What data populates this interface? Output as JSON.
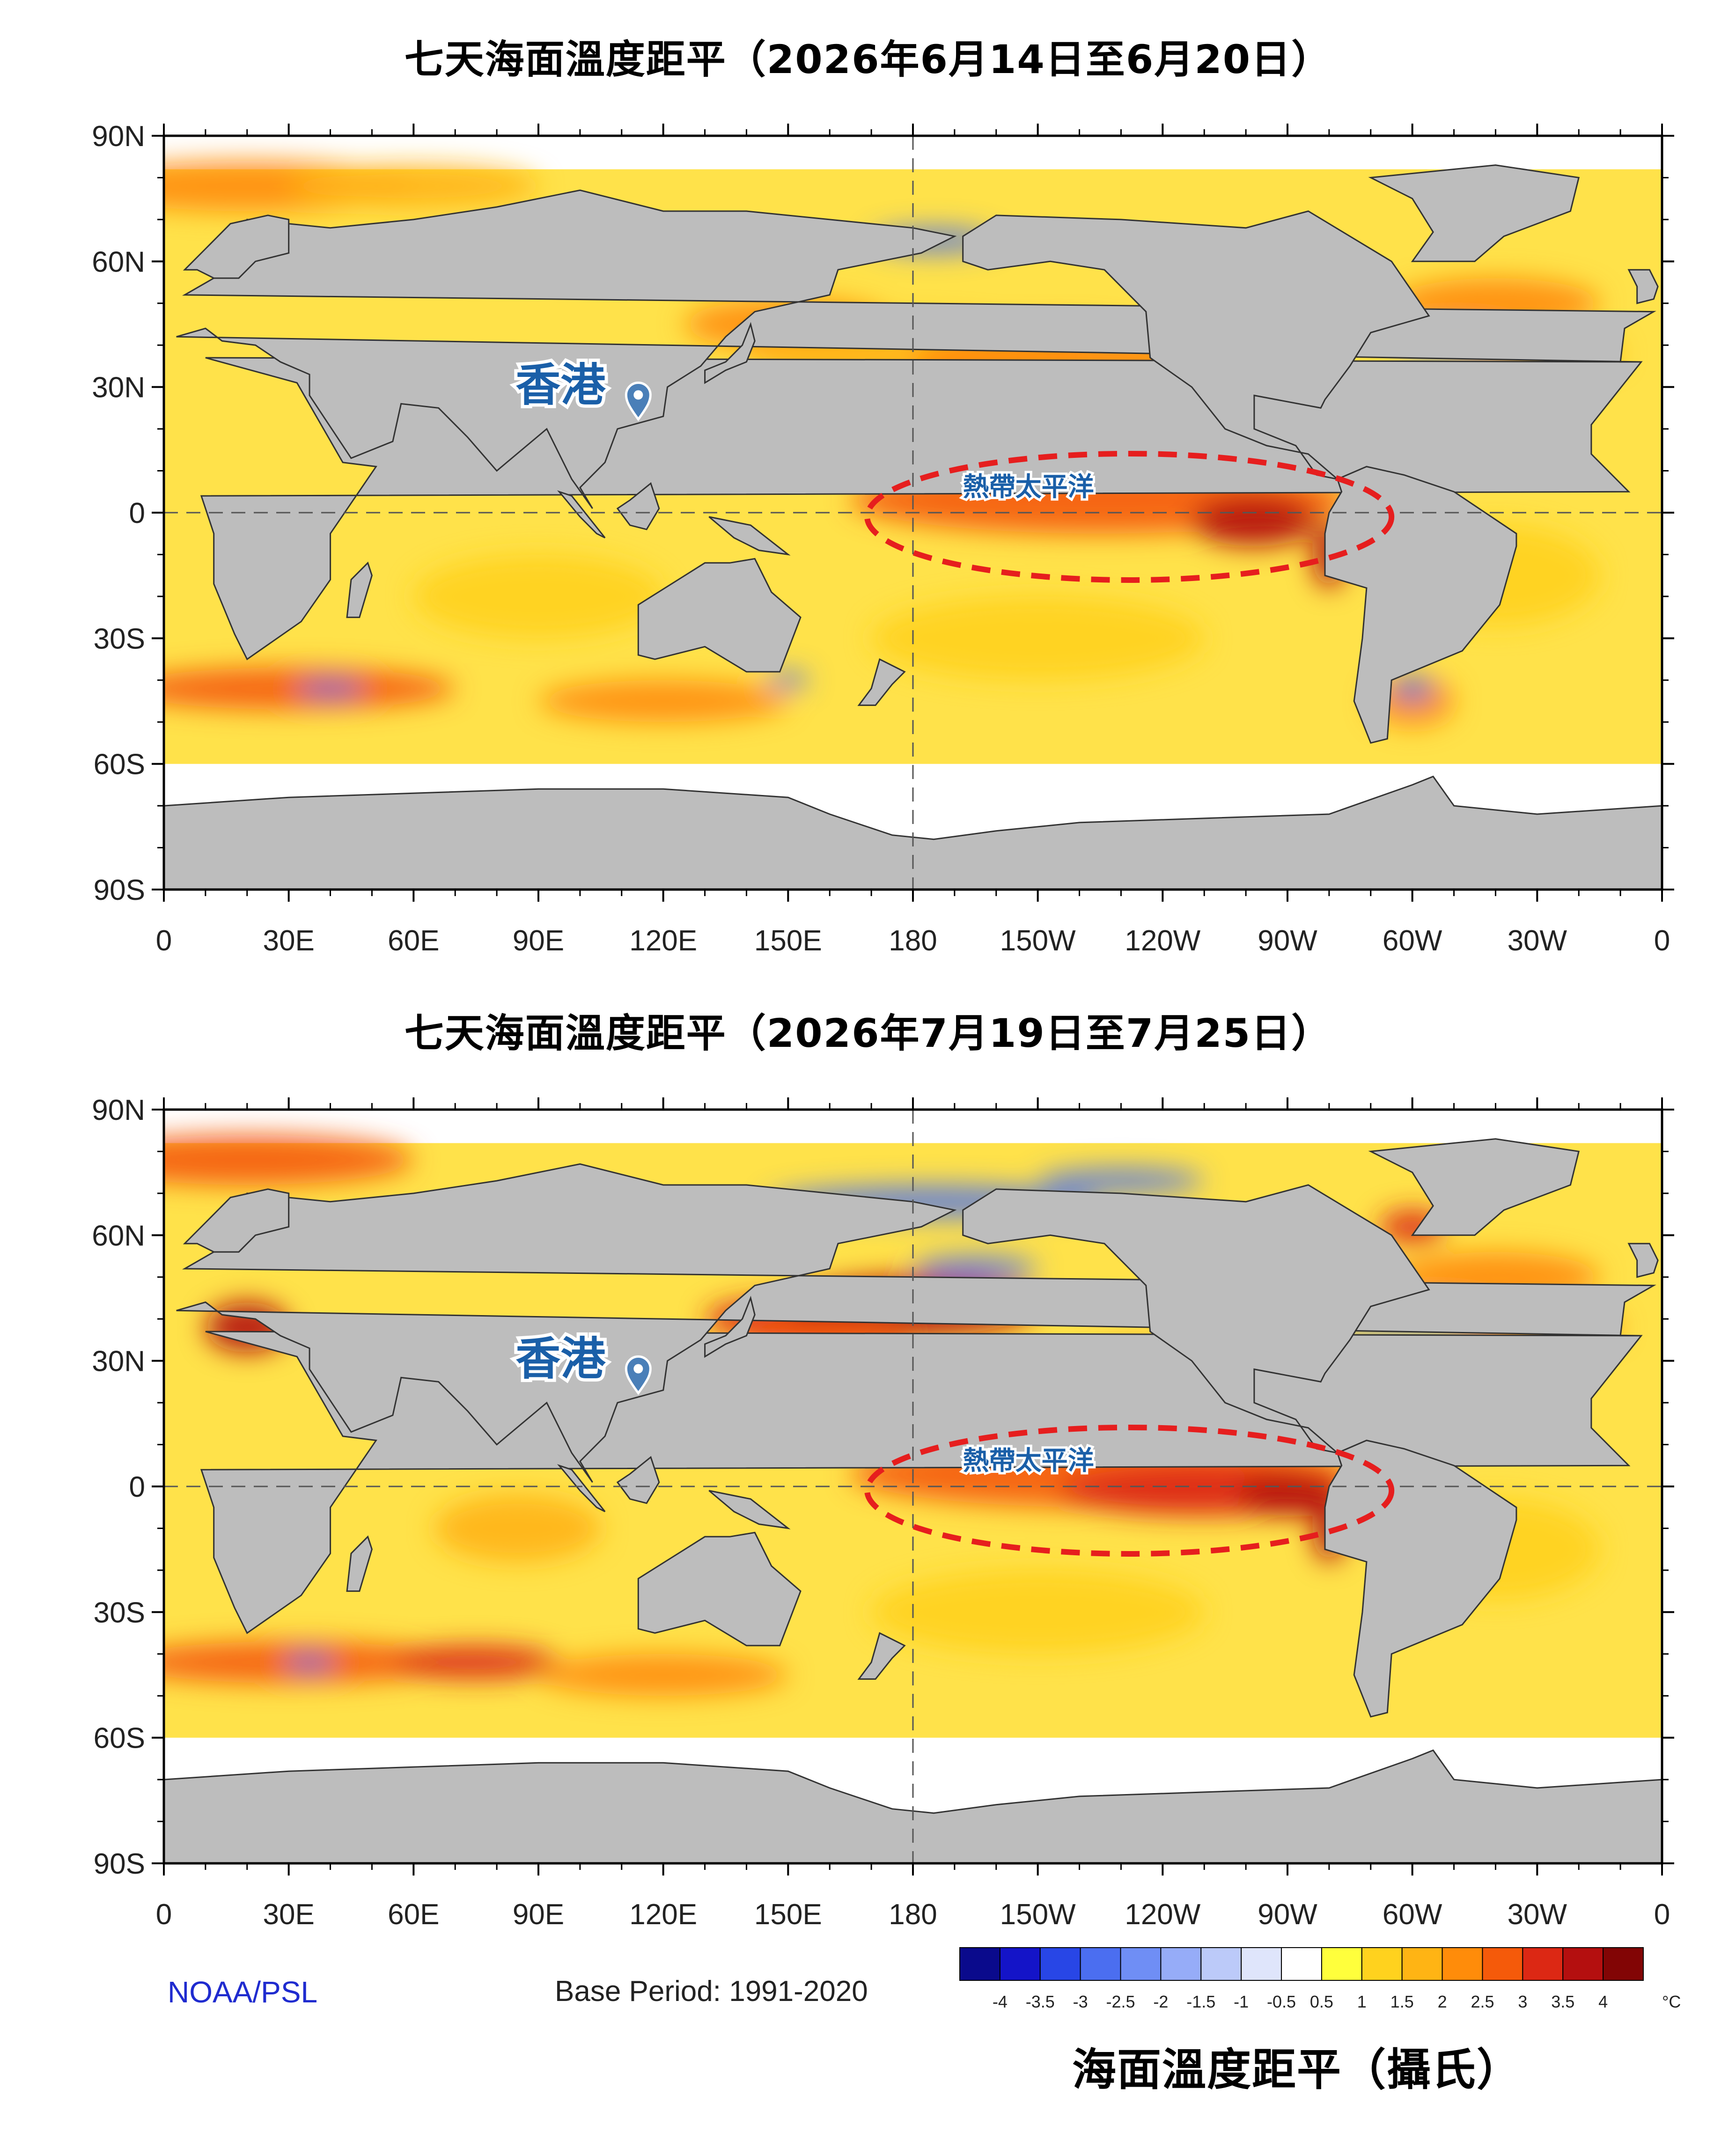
{
  "panels": [
    {
      "title": "七天海面溫度距平（2026年6月14日至6月20日）",
      "callout_hk": "香港",
      "callout_pacific": "熱帶太平洋"
    },
    {
      "title": "七天海面溫度距平（2026年7月19日至7月25日）",
      "callout_hk": "香港",
      "callout_pacific": "熱帶太平洋"
    }
  ],
  "axes": {
    "lat_ticks": [
      "90N",
      "60N",
      "30N",
      "0",
      "30S",
      "60S",
      "90S"
    ],
    "lon_ticks": [
      "0",
      "30E",
      "60E",
      "90E",
      "120E",
      "150E",
      "180",
      "150W",
      "120W",
      "90W",
      "60W",
      "30W",
      "0"
    ]
  },
  "footer": {
    "credit": "NOAA/PSL",
    "base_period": "Base Period: 1991-2020"
  },
  "legend": {
    "title": "海面溫度距平（攝氏）",
    "unit": "°C",
    "labels": [
      "-4",
      "-3.5",
      "-3",
      "-2.5",
      "-2",
      "-1.5",
      "-1",
      "-0.5",
      "0.5",
      "1",
      "1.5",
      "2",
      "2.5",
      "3",
      "3.5",
      "4"
    ],
    "colors": [
      "#0a0a8c",
      "#1414c8",
      "#2846e6",
      "#4b6ef0",
      "#6f8ef5",
      "#96acf8",
      "#bccaf9",
      "#dfe5fb",
      "#ffffff",
      "#ffff3c",
      "#ffd21e",
      "#ffb414",
      "#ff8c0a",
      "#f55a0a",
      "#dc2814",
      "#b40f0f",
      "#820505"
    ]
  },
  "colors": {
    "land": "#bdbdbd",
    "ocean_anomaly_base": "#ffe24a",
    "highlight_dash": "#e61e1e",
    "callout_text": "#1a5fa8"
  }
}
